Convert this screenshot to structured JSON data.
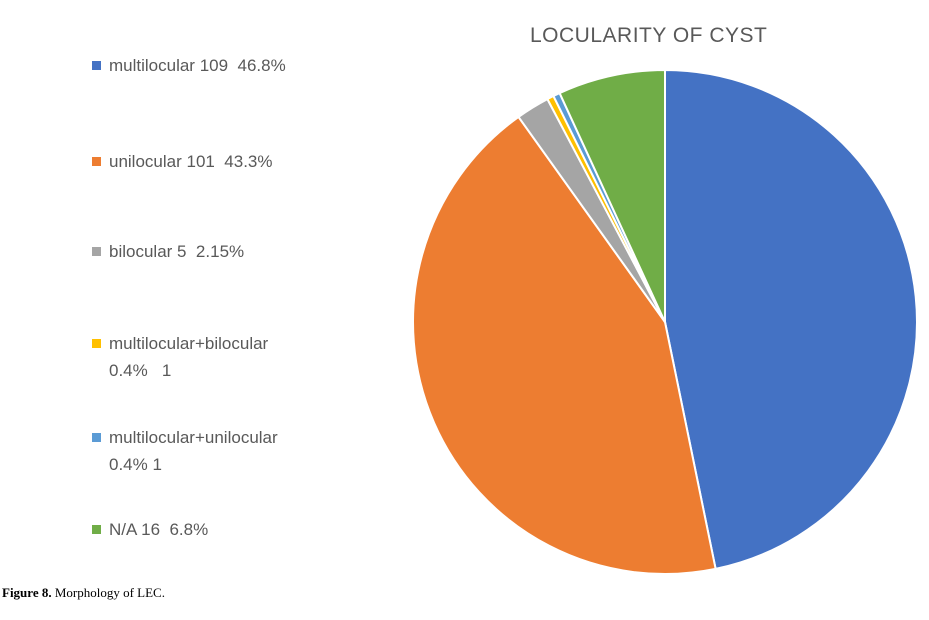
{
  "chart_data": {
    "type": "pie",
    "title": "LOCULARITY OF CYST",
    "slices": [
      {
        "label": "multilocular 109  46.8%",
        "value": 109,
        "percent": 46.8,
        "color": "#4472c4"
      },
      {
        "label": "unilocular 101  43.3%",
        "value": 101,
        "percent": 43.3,
        "color": "#ed7d31"
      },
      {
        "label": "bilocular 5  2.15%",
        "value": 5,
        "percent": 2.15,
        "color": "#a5a5a5"
      },
      {
        "label": "multilocular+bilocular 0.4%   1",
        "label_lines": [
          "multilocular+bilocular",
          "0.4%   1"
        ],
        "value": 1,
        "percent": 0.4,
        "color": "#ffc000"
      },
      {
        "label": "multilocular+unilocular 0.4% 1",
        "label_lines": [
          "multilocular+unilocular",
          "0.4% 1"
        ],
        "value": 1,
        "percent": 0.4,
        "color": "#5b9bd5"
      },
      {
        "label": "N/A 16  6.8%",
        "value": 16,
        "percent": 6.8,
        "color": "#70ad47"
      }
    ],
    "legend_position": "left",
    "start_angle": "12 o'clock",
    "direction": "clockwise"
  },
  "caption": {
    "label": "Figure 8.",
    "text": " Morphology  of LEC."
  }
}
